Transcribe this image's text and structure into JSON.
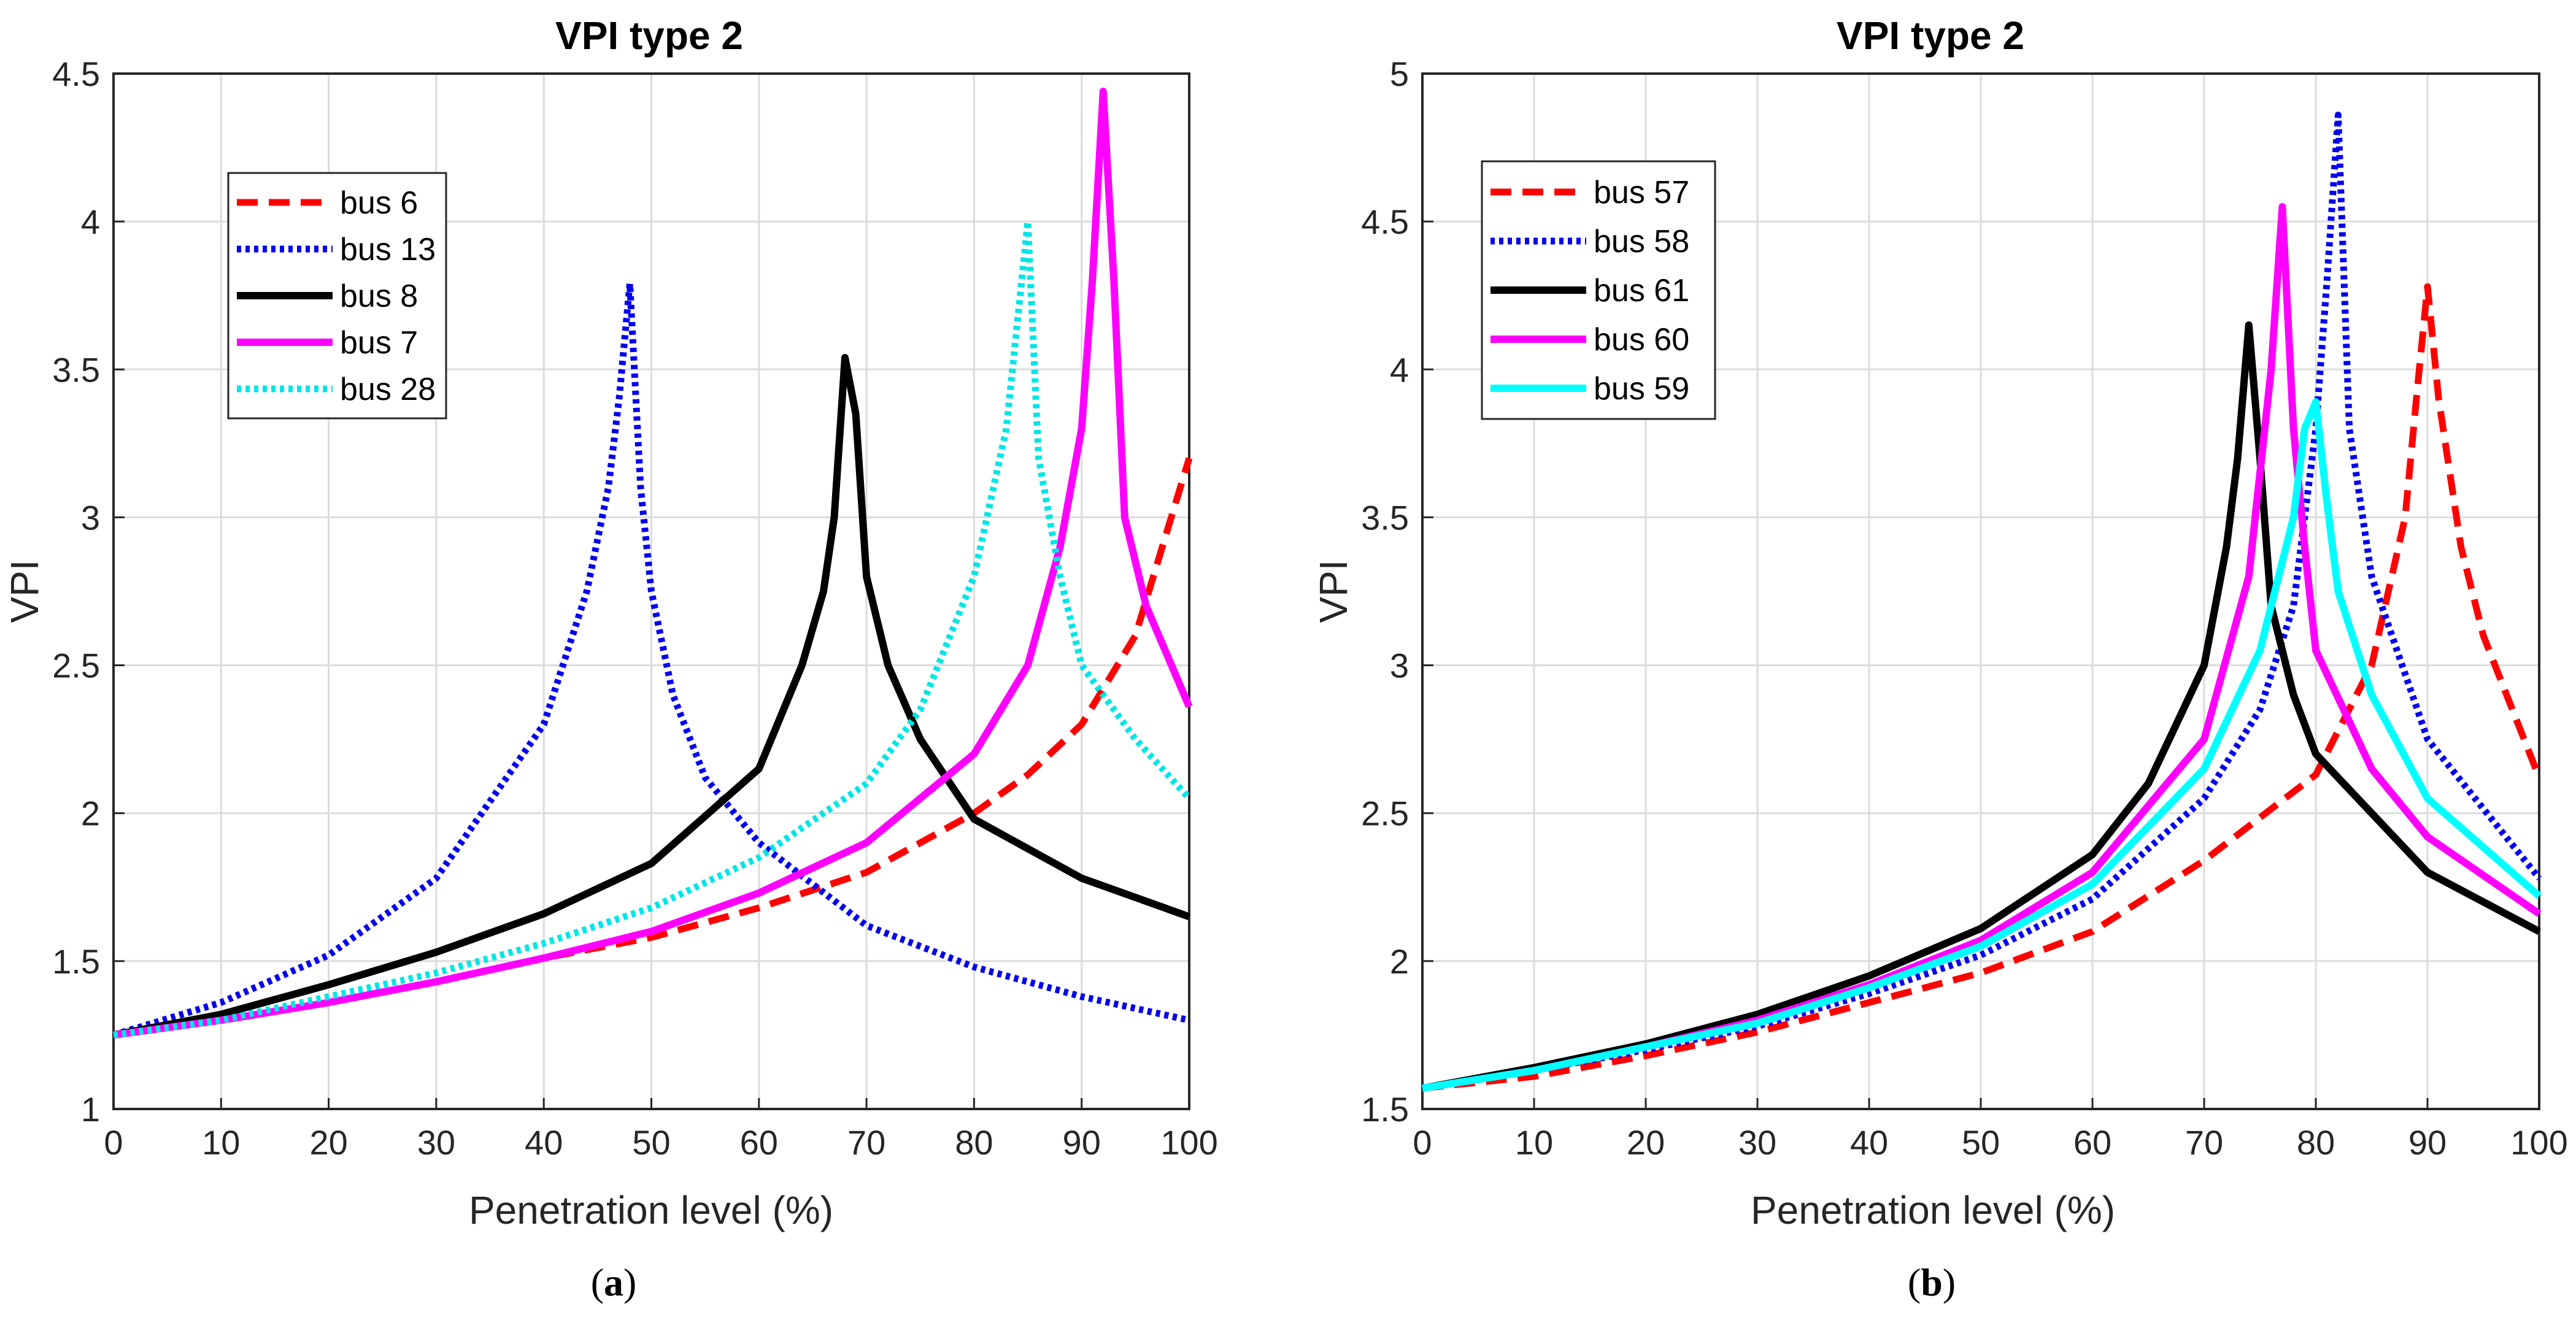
{
  "chart_data": [
    {
      "type": "line",
      "panel_label": "a",
      "title": "VPI type 2",
      "xlabel": "Penetration level (%)",
      "ylabel": "VPI",
      "xlim": [
        0,
        100
      ],
      "ylim": [
        1,
        4.5
      ],
      "xticks": [
        "0",
        "10",
        "20",
        "30",
        "40",
        "50",
        "60",
        "70",
        "80",
        "90",
        "100"
      ],
      "yticks": [
        "1",
        "1.5",
        "2",
        "2.5",
        "3",
        "3.5",
        "4",
        "4.5"
      ],
      "grid": true,
      "legend_position": "upper-left",
      "series": [
        {
          "name": "bus 6",
          "color": "#ff0000",
          "style": "dashed",
          "x": [
            0,
            10,
            20,
            30,
            40,
            50,
            60,
            70,
            80,
            85,
            90,
            95,
            100
          ],
          "y": [
            1.25,
            1.3,
            1.36,
            1.43,
            1.51,
            1.58,
            1.68,
            1.8,
            2.0,
            2.13,
            2.3,
            2.6,
            3.2
          ]
        },
        {
          "name": "bus 13",
          "color": "#0000ee",
          "style": "dotted",
          "x": [
            0,
            10,
            20,
            30,
            40,
            44,
            46,
            47,
            48,
            49,
            50,
            52,
            55,
            60,
            70,
            80,
            90,
            100
          ],
          "y": [
            1.25,
            1.36,
            1.52,
            1.78,
            2.3,
            2.75,
            3.1,
            3.4,
            3.79,
            3.1,
            2.75,
            2.4,
            2.12,
            1.9,
            1.62,
            1.48,
            1.38,
            1.3
          ]
        },
        {
          "name": "bus 8",
          "color": "#000000",
          "style": "solid",
          "x": [
            0,
            10,
            20,
            30,
            40,
            50,
            60,
            64,
            66,
            67,
            68,
            69,
            70,
            72,
            75,
            80,
            90,
            100
          ],
          "y": [
            1.25,
            1.32,
            1.42,
            1.53,
            1.66,
            1.83,
            2.15,
            2.5,
            2.75,
            3.0,
            3.54,
            3.35,
            2.8,
            2.5,
            2.25,
            1.98,
            1.78,
            1.65
          ]
        },
        {
          "name": "bus 7",
          "color": "#ff00ff",
          "style": "solid",
          "x": [
            0,
            10,
            20,
            30,
            40,
            50,
            60,
            70,
            80,
            85,
            88,
            90,
            91,
            92,
            93,
            94,
            96,
            100
          ],
          "y": [
            1.25,
            1.3,
            1.36,
            1.43,
            1.51,
            1.6,
            1.73,
            1.9,
            2.2,
            2.5,
            2.9,
            3.3,
            3.8,
            4.44,
            3.8,
            3.0,
            2.7,
            2.36
          ]
        },
        {
          "name": "bus 28",
          "color": "#00e5e5",
          "style": "dotted",
          "x": [
            0,
            10,
            20,
            30,
            40,
            50,
            60,
            70,
            75,
            80,
            83,
            84,
            85,
            86,
            88,
            90,
            95,
            100
          ],
          "y": [
            1.25,
            1.3,
            1.38,
            1.46,
            1.56,
            1.68,
            1.85,
            2.1,
            2.35,
            2.8,
            3.3,
            3.65,
            4.0,
            3.2,
            2.8,
            2.5,
            2.25,
            2.05
          ]
        }
      ]
    },
    {
      "type": "line",
      "panel_label": "b",
      "title": "VPI type 2",
      "xlabel": "Penetration level (%)",
      "ylabel": "VPI",
      "xlim": [
        0,
        100
      ],
      "ylim": [
        1.5,
        5
      ],
      "xticks": [
        "0",
        "10",
        "20",
        "30",
        "40",
        "50",
        "60",
        "70",
        "80",
        "90",
        "100"
      ],
      "yticks": [
        "1.5",
        "2",
        "2.5",
        "3",
        "3.5",
        "4",
        "4.5",
        "5"
      ],
      "grid": true,
      "legend_position": "upper-left",
      "series": [
        {
          "name": "bus 57",
          "color": "#ff0000",
          "style": "dashed",
          "x": [
            0,
            10,
            20,
            30,
            40,
            50,
            60,
            70,
            80,
            85,
            88,
            89,
            90,
            91,
            93,
            95,
            100
          ],
          "y": [
            1.57,
            1.61,
            1.68,
            1.76,
            1.86,
            1.96,
            2.1,
            2.34,
            2.63,
            3.0,
            3.5,
            3.9,
            4.28,
            3.9,
            3.4,
            3.1,
            2.62
          ]
        },
        {
          "name": "bus 58",
          "color": "#0000ee",
          "style": "dotted",
          "x": [
            0,
            10,
            20,
            30,
            40,
            50,
            60,
            70,
            75,
            78,
            80,
            81,
            82,
            83,
            85,
            90,
            100
          ],
          "y": [
            1.57,
            1.63,
            1.7,
            1.78,
            1.89,
            2.02,
            2.21,
            2.55,
            2.85,
            3.2,
            3.8,
            4.3,
            4.86,
            3.8,
            3.3,
            2.75,
            2.28
          ]
        },
        {
          "name": "bus 61",
          "color": "#000000",
          "style": "solid",
          "x": [
            0,
            10,
            20,
            30,
            40,
            50,
            60,
            65,
            70,
            72,
            73,
            74,
            75,
            76,
            78,
            80,
            90,
            100
          ],
          "y": [
            1.57,
            1.64,
            1.72,
            1.82,
            1.95,
            2.11,
            2.36,
            2.6,
            3.0,
            3.4,
            3.7,
            4.15,
            3.7,
            3.2,
            2.9,
            2.7,
            2.3,
            2.1
          ]
        },
        {
          "name": "bus 60",
          "color": "#ff00ff",
          "style": "solid",
          "x": [
            0,
            10,
            20,
            30,
            40,
            50,
            60,
            70,
            74,
            76,
            77,
            78,
            79,
            80,
            85,
            90,
            100
          ],
          "y": [
            1.57,
            1.63,
            1.71,
            1.8,
            1.92,
            2.07,
            2.3,
            2.75,
            3.3,
            4.0,
            4.55,
            3.8,
            3.4,
            3.05,
            2.65,
            2.42,
            2.16
          ]
        },
        {
          "name": "bus 59",
          "color": "#00ffff",
          "style": "solid",
          "x": [
            0,
            10,
            20,
            30,
            40,
            50,
            60,
            70,
            75,
            78,
            79,
            80,
            81,
            82,
            85,
            90,
            100
          ],
          "y": [
            1.57,
            1.63,
            1.71,
            1.79,
            1.91,
            2.05,
            2.26,
            2.65,
            3.05,
            3.5,
            3.8,
            3.89,
            3.55,
            3.25,
            2.9,
            2.55,
            2.22
          ]
        }
      ]
    }
  ]
}
